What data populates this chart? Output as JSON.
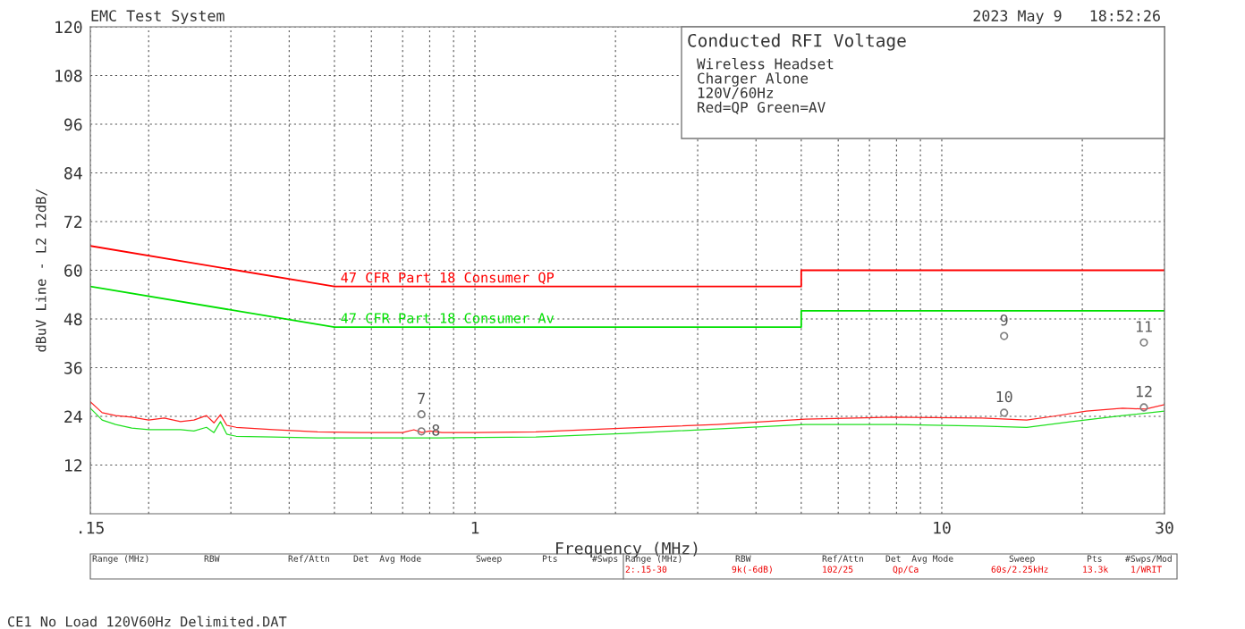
{
  "chart_data": {
    "type": "line",
    "title": "Conducted RFI Voltage",
    "subtitle": "Wireless Headset\nCharger Alone\n120V/60Hz\nRed=QP Green=AV",
    "xlabel": "Frequency (MHz)",
    "ylabel": "dBuV Line - L2 12dB/",
    "log": "x",
    "xlim": [
      0.15,
      30
    ],
    "ylim": [
      0,
      120
    ],
    "xticks": [
      {
        "value": 0.15,
        "label": ".15"
      },
      {
        "value": 0.2,
        "label": null
      },
      {
        "value": 0.3,
        "label": null
      },
      {
        "value": 0.4,
        "label": null
      },
      {
        "value": 0.5,
        "label": null
      },
      {
        "value": 0.6,
        "label": null
      },
      {
        "value": 0.7,
        "label": null
      },
      {
        "value": 0.8,
        "label": null
      },
      {
        "value": 0.9,
        "label": null
      },
      1,
      {
        "value": 2,
        "label": null
      },
      {
        "value": 3,
        "label": null
      },
      {
        "value": 4,
        "label": null
      },
      {
        "value": 5,
        "label": null
      },
      {
        "value": 6,
        "label": null
      },
      {
        "value": 7,
        "label": null
      },
      {
        "value": 8,
        "label": null
      },
      {
        "value": 9,
        "label": null
      },
      10,
      {
        "value": 20,
        "label": null
      },
      30
    ],
    "yticks": [
      12,
      24,
      36,
      48,
      60,
      72,
      84,
      96,
      108,
      120
    ],
    "grid": true,
    "legend": false,
    "series": [
      {
        "name": "47 CFR Part 18 Consumer QP",
        "color": "#ff0000",
        "x": [
          0.15,
          0.5,
          5,
          5,
          30
        ],
        "values": [
          66,
          56,
          56,
          60,
          60
        ]
      },
      {
        "name": "47 CFR Part 18 Consumer Av",
        "color": "#00e000",
        "x": [
          0.15,
          0.5,
          5,
          5,
          30
        ],
        "values": [
          56,
          46,
          46,
          50,
          50
        ]
      },
      {
        "color": "#ff2020",
        "x": [
          0.15,
          0.159,
          0.17,
          0.184,
          0.2,
          0.216,
          0.234,
          0.25,
          0.266,
          0.276,
          0.285,
          0.294,
          0.308,
          0.37,
          0.46,
          0.57,
          0.7,
          0.74,
          0.77,
          0.8,
          0.85,
          1.0,
          1.35,
          2.1,
          3.3,
          5.1,
          7.9,
          12.2,
          15.2,
          17.3,
          20.4,
          24.4,
          27.3,
          30
        ],
        "values": [
          27.6,
          24.9,
          24.2,
          23.8,
          23.1,
          23.6,
          22.7,
          23.1,
          24.2,
          22.4,
          24.4,
          21.8,
          21.3,
          20.7,
          20.2,
          20.0,
          20.0,
          20.7,
          20.0,
          20.4,
          20.0,
          20.0,
          20.2,
          21.1,
          22.0,
          23.3,
          23.8,
          23.6,
          23.1,
          24.0,
          25.3,
          26.0,
          25.8,
          26.9
        ]
      },
      {
        "color": "#20e020",
        "x": [
          0.15,
          0.159,
          0.17,
          0.184,
          0.2,
          0.234,
          0.25,
          0.266,
          0.276,
          0.285,
          0.294,
          0.308,
          0.37,
          0.46,
          0.57,
          0.85,
          1.35,
          2.1,
          3.3,
          5.1,
          7.9,
          12.2,
          15.2,
          19.0,
          24.4,
          30
        ],
        "values": [
          26.0,
          23.1,
          22.0,
          21.1,
          20.7,
          20.7,
          20.4,
          21.3,
          20.0,
          22.7,
          19.6,
          19.1,
          18.9,
          18.7,
          18.7,
          18.7,
          18.9,
          19.8,
          20.9,
          22.0,
          22.0,
          21.6,
          21.3,
          22.7,
          24.2,
          25.3
        ]
      },
      {
        "type": "scatter",
        "color": "#808080",
        "marker": "circle",
        "x": [
          0.768,
          0.768,
          13.6,
          13.6,
          27.1,
          27.1
        ],
        "values": [
          24.5,
          20.3,
          43.8,
          24.9,
          42.2,
          26.2
        ]
      }
    ],
    "annotations": [
      {
        "text": "7",
        "x": 0.768,
        "y": 24.5
      },
      {
        "text": "8",
        "x": 0.768,
        "y": 20.3
      },
      {
        "text": "9",
        "x": 13.6,
        "y": 43.8
      },
      {
        "text": "10",
        "x": 13.6,
        "y": 24.9
      },
      {
        "text": "11",
        "x": 27.1,
        "y": 42.2
      },
      {
        "text": "12",
        "x": 27.1,
        "y": 26.2
      },
      "EMC Test System",
      "2023 May 9   18:52:26",
      "CE1 No Load 120V60Hz Delimited.DAT",
      "Range (MHz)",
      "RBW",
      "Ref/Attn",
      "Det  Avg Mode",
      "Sweep",
      "Pts",
      "#Swps",
      "Range (MHz)",
      "RBW",
      "Ref/Attn",
      "Det  Avg Mode",
      "Sweep",
      "Pts",
      "#Swps/Mod",
      "2:.15-30",
      "9k(-6dB)",
      "102/25",
      "Qp/Ca",
      "60s/2.25kHz",
      "13.3k",
      "1/WRIT"
    ]
  }
}
